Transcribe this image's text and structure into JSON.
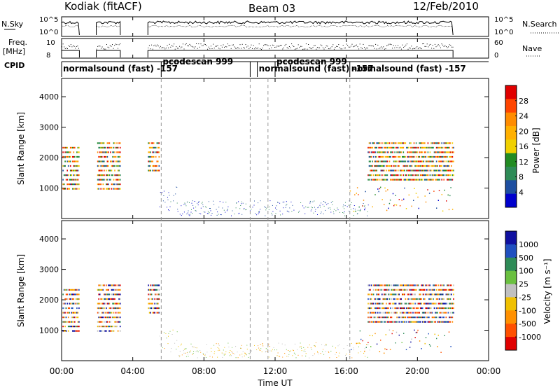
{
  "header": {
    "station": "Kodiak (fitACF)",
    "beam": "Beam 03",
    "date": "12/Feb/2010"
  },
  "chart_data": [
    {
      "type": "line",
      "panel": "noise",
      "left_label": "N.Sky",
      "right_label": "N.Search",
      "left_ticks": [
        "10^5",
        "10^0"
      ],
      "right_ticks": [
        "10^5",
        "10^0"
      ],
      "segments_hours": [
        [
          0.0,
          1.0
        ],
        [
          1.95,
          3.3
        ],
        [
          4.85,
          22.0
        ]
      ]
    },
    {
      "type": "scatter",
      "panel": "freq-nave",
      "left_label": "Freq.",
      "left_unit": "[MHz]",
      "right_label": "Nave",
      "left_ticks": [
        "10",
        "8"
      ],
      "right_ticks": [
        "60",
        "0"
      ],
      "segments_hours": [
        [
          0.0,
          1.0
        ],
        [
          1.95,
          3.3
        ],
        [
          4.85,
          22.0
        ]
      ]
    },
    {
      "type": "table",
      "panel": "cpid",
      "label": "CPID",
      "modes": [
        {
          "start": 0.0,
          "end": 5.6,
          "text": "normalsound (fast) -157"
        },
        {
          "start": 5.6,
          "end": 10.6,
          "text": "pcodescan 999"
        },
        {
          "start": 10.6,
          "end": 11.0,
          "text": ""
        },
        {
          "start": 11.0,
          "end": 16.2,
          "text": "normalsound (fast) -157"
        },
        {
          "start": 12.0,
          "end": 16.2,
          "text": "pcodescan 999"
        },
        {
          "start": 16.2,
          "end": 24.0,
          "text": "normalsound (fast) -157"
        }
      ]
    },
    {
      "type": "heatmap",
      "panel": "power",
      "ylabel": "Slant Range [km]",
      "yticks": [
        1000,
        2000,
        3000,
        4000
      ],
      "ylim": [
        0,
        4600
      ],
      "colorbar_label": "Power [dB]",
      "colorbar_ticks": [
        "28",
        "24",
        "20",
        "16",
        "12",
        "8",
        "4"
      ],
      "colorbar_colors": [
        "#e00000",
        "#ff4500",
        "#ff8c00",
        "#ffb000",
        "#f0d000",
        "#228b22",
        "#2e8b57",
        "#1e4fa0",
        "#0000cd"
      ]
    },
    {
      "type": "heatmap",
      "panel": "velocity",
      "ylabel": "Slant Range [km]",
      "yticks": [
        1000,
        2000,
        3000,
        4000
      ],
      "ylim": [
        0,
        4600
      ],
      "colorbar_label": "Velocity [m s⁻¹]",
      "colorbar_ticks": [
        "1000",
        "500",
        "100",
        "25",
        "-25",
        "-100",
        "-500",
        "-1000"
      ],
      "colorbar_colors": [
        "#1010a0",
        "#2050c0",
        "#2e8b57",
        "#6ac040",
        "#c0c0c0",
        "#f0c000",
        "#ff9000",
        "#ff5000",
        "#e00000"
      ]
    }
  ],
  "xaxis": {
    "label": "Time UT",
    "ticks": [
      "00:00",
      "04:00",
      "08:00",
      "12:00",
      "16:00",
      "20:00",
      "00:00"
    ],
    "xlim_hours": [
      0,
      24
    ],
    "dashed_lines_hours": [
      5.6,
      10.6,
      11.6,
      16.2
    ]
  }
}
